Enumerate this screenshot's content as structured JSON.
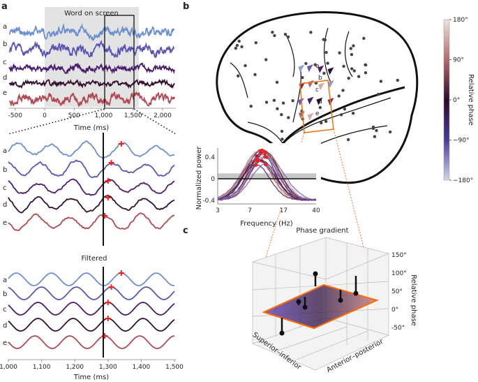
{
  "panels": {
    "a": "a",
    "b": "b",
    "c": "c"
  },
  "chart_data": [
    {
      "type": "line",
      "id": "raw-traces",
      "annotation": "Word on screen",
      "xlabel": "Time (ms)",
      "xlim": [
        -600,
        2200
      ],
      "xticks": [
        "-500",
        "0",
        "500",
        "1,000",
        "1,500",
        "2,000"
      ],
      "xtick_values": [
        -500,
        0,
        500,
        1000,
        1500,
        2000
      ],
      "word_on_screen_ms": [
        0,
        1600
      ],
      "zoom_window_ms": [
        1000,
        1500
      ],
      "series": [
        {
          "name": "a",
          "color": "#6b8fcf"
        },
        {
          "name": "b",
          "color": "#5b55b5"
        },
        {
          "name": "c",
          "color": "#4a1d6e"
        },
        {
          "name": "d",
          "color": "#33102f"
        },
        {
          "name": "e",
          "color": "#b24a55"
        }
      ]
    },
    {
      "type": "line",
      "id": "zoomed-traces",
      "xlim": [
        1000,
        1500
      ],
      "event_ms": 1280,
      "series_peaks_ms": {
        "a": 1340,
        "b": 1310,
        "c": 1300,
        "d": 1300,
        "e": 1290
      },
      "labels": [
        "a",
        "b",
        "c",
        "d",
        "e"
      ]
    },
    {
      "type": "line",
      "id": "filtered-traces",
      "title": "Filtered",
      "xlabel": "Time (ms)",
      "xlim": [
        1000,
        1500
      ],
      "xticks": [
        "1,000",
        "1,100",
        "1,200",
        "1,300",
        "1,400",
        "1,500"
      ],
      "xtick_values": [
        1000,
        1100,
        1200,
        1300,
        1400,
        1500
      ],
      "event_ms": 1280,
      "series_peaks_ms": {
        "a": 1340,
        "b": 1310,
        "c": 1300,
        "d": 1300,
        "e": 1290
      },
      "labels": [
        "a",
        "b",
        "c",
        "d",
        "e"
      ]
    },
    {
      "type": "line",
      "id": "power-spectrum",
      "xlabel": "Frequency (Hz)",
      "ylabel": "Normalized power",
      "xticks": [
        "3",
        "7",
        "17",
        "40"
      ],
      "xtick_values": [
        3,
        7,
        17,
        40
      ],
      "xscale": "log",
      "yticks": [
        "0.4",
        "0",
        "-0.4"
      ],
      "ytick_values": [
        0.4,
        0,
        -0.4
      ],
      "ylim": [
        -0.45,
        0.55
      ],
      "peak_hz": 9,
      "peak_power": 0.5,
      "significance_band": [
        0,
        0.1
      ]
    },
    {
      "type": "heatmap",
      "id": "phase-colorbar",
      "label": "Relative phase",
      "ticks": [
        "180°",
        "90°",
        "0°",
        "−90°",
        "−180°"
      ],
      "tick_values": [
        180,
        90,
        0,
        -90,
        -180
      ],
      "colors": [
        "#e8d6d0",
        "#b06c6a",
        "#3a0f36",
        "#4b3c9a",
        "#c7d6e4"
      ]
    },
    {
      "type": "scatter",
      "id": "phase-gradient",
      "title": "Phase gradient",
      "xlabel": "Superior–inferior",
      "ylabel": "Anterior–posterior",
      "zlabel": "Relative phase",
      "zticks": [
        "150°",
        "100°",
        "50°",
        "0°",
        "-50°"
      ],
      "ztick_values": [
        150,
        100,
        50,
        0,
        -50
      ]
    }
  ]
}
